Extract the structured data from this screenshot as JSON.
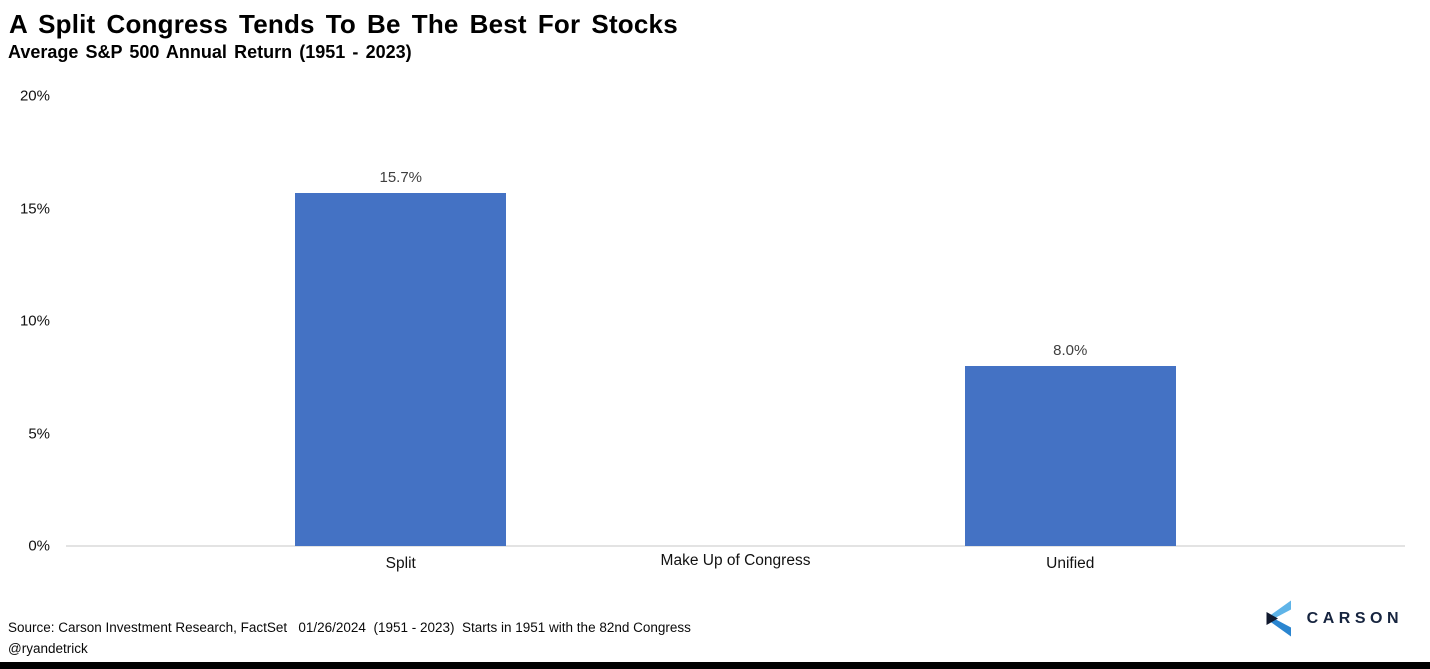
{
  "title": "A Split Congress Tends To Be The Best For Stocks",
  "subtitle": "Average S&P 500 Annual Return (1951 - 2023)",
  "chart_data": {
    "type": "bar",
    "title": "A Split Congress Tends To Be The Best For Stocks",
    "subtitle": "Average S&P 500 Annual Return (1951 - 2023)",
    "categories": [
      "Split",
      "Unified"
    ],
    "values": [
      15.7,
      8.0
    ],
    "value_labels": [
      "15.7%",
      "8.0%"
    ],
    "xlabel": "Make Up of Congress",
    "ylabel": "",
    "ylim": [
      0,
      20
    ],
    "yticks": [
      {
        "value": 0,
        "label": "0%"
      },
      {
        "value": 5,
        "label": "5%"
      },
      {
        "value": 10,
        "label": "10%"
      },
      {
        "value": 15,
        "label": "15%"
      },
      {
        "value": 20,
        "label": "20%"
      }
    ],
    "grid": false,
    "legend": "none",
    "bar_color": "#4472C4",
    "axis_line_color": "#E3E3E3"
  },
  "footer": {
    "source_line": "Source: Carson Investment Research, FactSet   01/26/2024  (1951 - 2023)  Starts in 1951 with the 82nd Congress",
    "handle": "@ryandetrick"
  },
  "logo": {
    "wordmark": "CARSON",
    "icon": "carson-chevron-icon",
    "colors": {
      "light_blue": "#5FB4E8",
      "mid_blue": "#2A85D0",
      "navy": "#10192E",
      "wordmark_navy": "#16243F"
    }
  }
}
